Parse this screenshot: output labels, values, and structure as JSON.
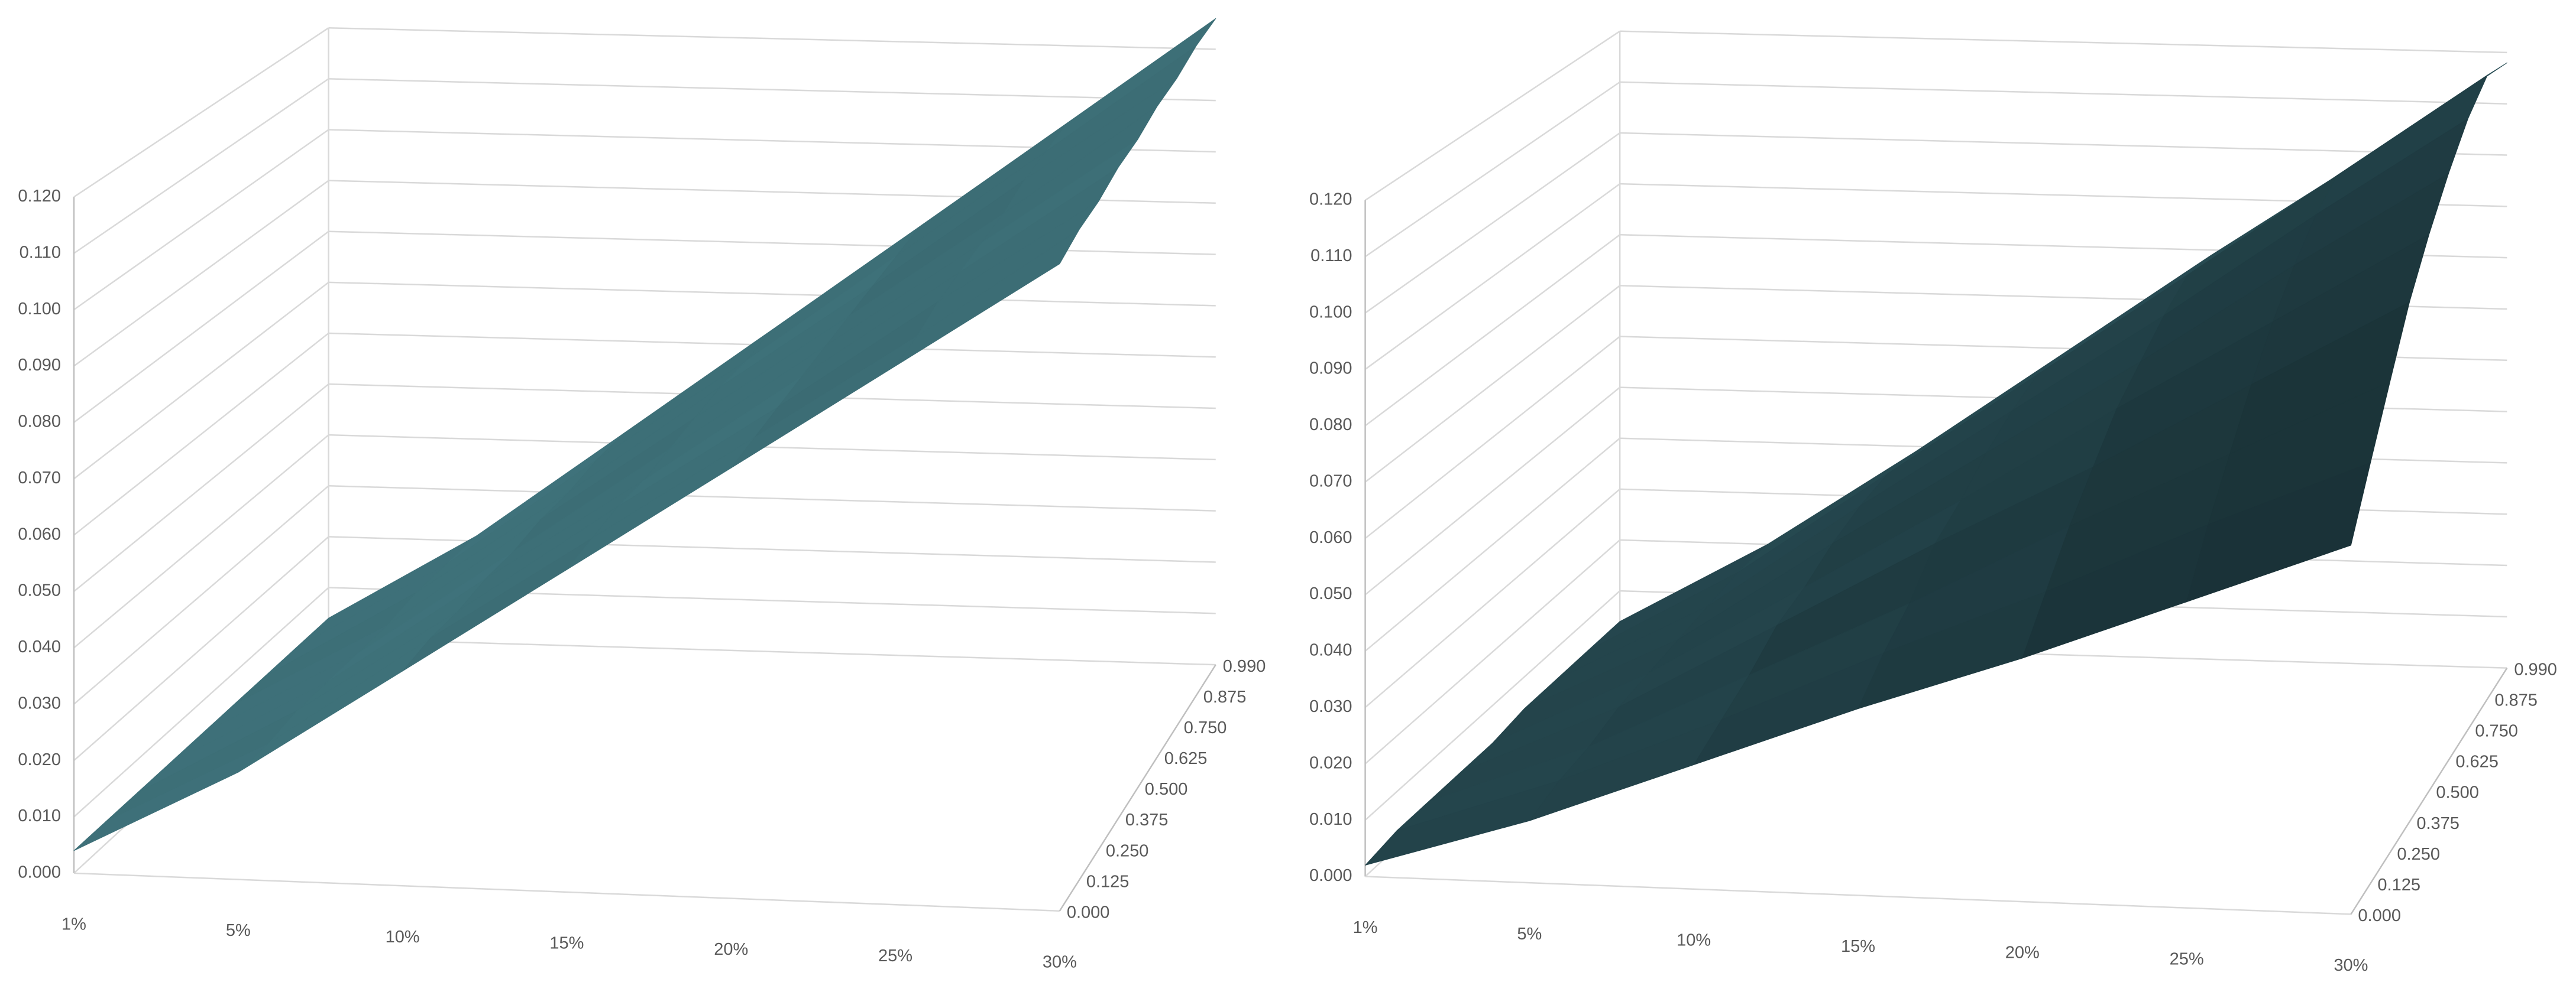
{
  "chart_data": [
    {
      "type": "surface",
      "color": "#3b6b73",
      "categories": [
        "1%",
        "5%",
        "10%",
        "15%",
        "20%",
        "25%",
        "30%"
      ],
      "zlim": [
        0,
        0.12
      ],
      "zticks": [
        {
          "value": 0,
          "label": "0.000"
        },
        {
          "value": 0.01,
          "label": "0.010"
        },
        {
          "value": 0.02,
          "label": "0.020"
        },
        {
          "value": 0.03,
          "label": "0.030"
        },
        {
          "value": 0.04,
          "label": "0.040"
        },
        {
          "value": 0.05,
          "label": "0.050"
        },
        {
          "value": 0.06,
          "label": "0.060"
        },
        {
          "value": 0.07,
          "label": "0.070"
        },
        {
          "value": 0.08,
          "label": "0.080"
        },
        {
          "value": 0.09,
          "label": "0.090"
        },
        {
          "value": 0.1,
          "label": "0.100"
        },
        {
          "value": 0.11,
          "label": "0.110"
        },
        {
          "value": 0.12,
          "label": "0.120"
        }
      ],
      "series": [
        {
          "name": "0.000",
          "values": [
            0.004,
            0.019,
            0.038,
            0.057,
            0.076,
            0.095,
            0.114
          ]
        },
        {
          "name": "0.125",
          "values": [
            0.004,
            0.019,
            0.039,
            0.058,
            0.077,
            0.096,
            0.116
          ]
        },
        {
          "name": "0.250",
          "values": [
            0.004,
            0.02,
            0.039,
            0.059,
            0.078,
            0.098,
            0.117
          ]
        },
        {
          "name": "0.375",
          "values": [
            0.004,
            0.02,
            0.04,
            0.059,
            0.079,
            0.099,
            0.119
          ]
        },
        {
          "name": "0.500",
          "values": [
            0.004,
            0.02,
            0.04,
            0.06,
            0.08,
            0.1,
            0.12
          ]
        },
        {
          "name": "0.625",
          "values": [
            0.004,
            0.02,
            0.041,
            0.061,
            0.081,
            0.101,
            0.122
          ]
        },
        {
          "name": "0.750",
          "values": [
            0.004,
            0.021,
            0.041,
            0.062,
            0.082,
            0.103,
            0.123
          ]
        },
        {
          "name": "0.875",
          "values": [
            0.004,
            0.021,
            0.042,
            0.062,
            0.083,
            0.104,
            0.125
          ]
        },
        {
          "name": "0.990",
          "values": [
            0.004,
            0.021,
            0.042,
            0.063,
            0.084,
            0.105,
            0.126
          ]
        }
      ]
    },
    {
      "type": "surface",
      "color": "#23434a",
      "categories": [
        "1%",
        "5%",
        "10%",
        "15%",
        "20%",
        "25%",
        "30%"
      ],
      "zlim": [
        0,
        0.12
      ],
      "zticks": [
        {
          "value": 0,
          "label": "0.000"
        },
        {
          "value": 0.01,
          "label": "0.010"
        },
        {
          "value": 0.02,
          "label": "0.020"
        },
        {
          "value": 0.03,
          "label": "0.030"
        },
        {
          "value": 0.04,
          "label": "0.040"
        },
        {
          "value": 0.05,
          "label": "0.050"
        },
        {
          "value": 0.06,
          "label": "0.060"
        },
        {
          "value": 0.07,
          "label": "0.070"
        },
        {
          "value": 0.08,
          "label": "0.080"
        },
        {
          "value": 0.09,
          "label": "0.090"
        },
        {
          "value": 0.1,
          "label": "0.100"
        },
        {
          "value": 0.11,
          "label": "0.110"
        },
        {
          "value": 0.12,
          "label": "0.120"
        }
      ],
      "series": [
        {
          "name": "0.000",
          "values": [
            0.002,
            0.011,
            0.022,
            0.033,
            0.043,
            0.054,
            0.065
          ]
        },
        {
          "name": "0.125",
          "values": [
            0.003,
            0.013,
            0.025,
            0.038,
            0.05,
            0.063,
            0.075
          ]
        },
        {
          "name": "0.250",
          "values": [
            0.003,
            0.014,
            0.028,
            0.042,
            0.057,
            0.071,
            0.085
          ]
        },
        {
          "name": "0.375",
          "values": [
            0.003,
            0.016,
            0.032,
            0.048,
            0.063,
            0.079,
            0.095
          ]
        },
        {
          "name": "0.500",
          "values": [
            0.003,
            0.017,
            0.034,
            0.051,
            0.069,
            0.086,
            0.103
          ]
        },
        {
          "name": "0.625",
          "values": [
            0.004,
            0.018,
            0.037,
            0.055,
            0.073,
            0.092,
            0.11
          ]
        },
        {
          "name": "0.750",
          "values": [
            0.004,
            0.019,
            0.039,
            0.058,
            0.077,
            0.097,
            0.116
          ]
        },
        {
          "name": "0.875",
          "values": [
            0.004,
            0.02,
            0.04,
            0.06,
            0.08,
            0.1,
            0.12
          ]
        },
        {
          "name": "0.990",
          "values": [
            0.004,
            0.02,
            0.039,
            0.059,
            0.079,
            0.098,
            0.118
          ]
        }
      ]
    }
  ]
}
